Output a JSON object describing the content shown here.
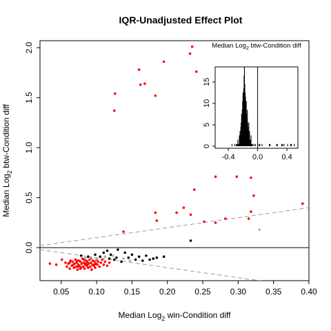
{
  "chart_data": {
    "type": "scatter",
    "title": "IQR-Unadjusted Effect Plot",
    "xlabel_pre": "Median  Log",
    "xlabel_sub": "2",
    "xlabel_post": "  win-Condition diff",
    "ylabel_pre": "Median  Log",
    "ylabel_sub": "2",
    "ylabel_post": "  btw-Condition diff",
    "xlim": [
      0.02,
      0.4
    ],
    "ylim": [
      -0.33,
      2.07
    ],
    "xticks": [
      "0.05",
      "0.10",
      "0.15",
      "0.20",
      "0.25",
      "0.30",
      "0.35",
      "0.40"
    ],
    "yticks": [
      "0.0",
      "0.5",
      "1.0",
      "1.5",
      "2.0"
    ],
    "colors": {
      "significant": "#ff0000",
      "other": "#000000",
      "minor": "#aaaaaa",
      "reference_line": "#000000",
      "dashed_line": "#999999"
    },
    "reference_lines": [
      {
        "type": "horizontal",
        "y": 0,
        "style": "solid"
      },
      {
        "type": "line",
        "intercept": 0,
        "slope": 1,
        "style": "dashed"
      },
      {
        "type": "line",
        "intercept": 0,
        "slope": -1,
        "style": "dashed"
      }
    ],
    "series": [
      {
        "color": "#ff0000",
        "points": [
          [
            0.235,
            2.01
          ],
          [
            0.232,
            1.94
          ],
          [
            0.241,
            1.76
          ],
          [
            0.195,
            1.86
          ],
          [
            0.16,
            1.78
          ],
          [
            0.126,
            1.54
          ],
          [
            0.162,
            1.63
          ],
          [
            0.168,
            1.64
          ],
          [
            0.183,
            1.52
          ],
          [
            0.125,
            1.37
          ],
          [
            0.337,
            1.97
          ],
          [
            0.238,
            0.58
          ],
          [
            0.268,
            0.71
          ],
          [
            0.298,
            0.71
          ],
          [
            0.318,
            0.7
          ],
          [
            0.335,
            0.79
          ],
          [
            0.322,
            0.52
          ],
          [
            0.223,
            0.4
          ],
          [
            0.183,
            0.35
          ],
          [
            0.213,
            0.35
          ],
          [
            0.233,
            0.33
          ],
          [
            0.185,
            0.27
          ],
          [
            0.252,
            0.26
          ],
          [
            0.268,
            0.25
          ],
          [
            0.282,
            0.29
          ],
          [
            0.318,
            0.36
          ],
          [
            0.315,
            0.29
          ],
          [
            0.138,
            0.16
          ],
          [
            0.034,
            -0.16
          ],
          [
            0.043,
            -0.17
          ],
          [
            0.051,
            -0.12
          ],
          [
            0.056,
            -0.15
          ],
          [
            0.058,
            -0.19
          ],
          [
            0.06,
            -0.16
          ],
          [
            0.062,
            -0.21
          ],
          [
            0.063,
            -0.13
          ],
          [
            0.065,
            -0.18
          ],
          [
            0.066,
            -0.14
          ],
          [
            0.068,
            -0.2
          ],
          [
            0.069,
            -0.16
          ],
          [
            0.07,
            -0.12
          ],
          [
            0.071,
            -0.19
          ],
          [
            0.072,
            -0.15
          ],
          [
            0.073,
            -0.22
          ],
          [
            0.074,
            -0.17
          ],
          [
            0.075,
            -0.13
          ],
          [
            0.076,
            -0.18
          ],
          [
            0.077,
            -0.14
          ],
          [
            0.078,
            -0.2
          ],
          [
            0.079,
            -0.16
          ],
          [
            0.08,
            -0.11
          ],
          [
            0.081,
            -0.19
          ],
          [
            0.082,
            -0.15
          ],
          [
            0.083,
            -0.21
          ],
          [
            0.084,
            -0.17
          ],
          [
            0.085,
            -0.13
          ],
          [
            0.086,
            -0.18
          ],
          [
            0.087,
            -0.14
          ],
          [
            0.088,
            -0.2
          ],
          [
            0.089,
            -0.16
          ],
          [
            0.09,
            -0.12
          ],
          [
            0.091,
            -0.19
          ],
          [
            0.092,
            -0.15
          ],
          [
            0.093,
            -0.22
          ],
          [
            0.094,
            -0.17
          ],
          [
            0.095,
            -0.13
          ],
          [
            0.096,
            -0.18
          ],
          [
            0.097,
            -0.14
          ],
          [
            0.098,
            -0.2
          ],
          [
            0.099,
            -0.16
          ],
          [
            0.1,
            -0.12
          ],
          [
            0.101,
            -0.17
          ],
          [
            0.102,
            -0.14
          ],
          [
            0.104,
            -0.19
          ],
          [
            0.106,
            -0.15
          ],
          [
            0.108,
            -0.12
          ],
          [
            0.11,
            -0.17
          ],
          [
            0.112,
            -0.14
          ],
          [
            0.115,
            -0.18
          ],
          [
            0.118,
            -0.15
          ],
          [
            0.067,
            -0.17
          ],
          [
            0.072,
            -0.13
          ],
          [
            0.077,
            -0.21
          ],
          [
            0.082,
            -0.12
          ],
          [
            0.087,
            -0.17
          ],
          [
            0.092,
            -0.11
          ],
          [
            0.097,
            -0.17
          ],
          [
            0.062,
            -0.15
          ],
          [
            0.074,
            -0.19
          ],
          [
            0.085,
            -0.16
          ],
          [
            0.391,
            0.44
          ]
        ]
      },
      {
        "color": "#000000",
        "points": [
          [
            0.233,
            0.07
          ],
          [
            0.13,
            -0.02
          ],
          [
            0.14,
            -0.05
          ],
          [
            0.15,
            -0.07
          ],
          [
            0.16,
            -0.09
          ],
          [
            0.17,
            -0.08
          ],
          [
            0.18,
            -0.11
          ],
          [
            0.185,
            -0.1
          ],
          [
            0.195,
            -0.09
          ],
          [
            0.145,
            -0.1
          ],
          [
            0.155,
            -0.12
          ],
          [
            0.165,
            -0.13
          ],
          [
            0.12,
            -0.07
          ],
          [
            0.125,
            -0.12
          ],
          [
            0.11,
            -0.05
          ],
          [
            0.105,
            -0.09
          ],
          [
            0.098,
            -0.07
          ],
          [
            0.135,
            -0.14
          ],
          [
            0.128,
            -0.1
          ],
          [
            0.118,
            -0.11
          ],
          [
            0.088,
            -0.09
          ],
          [
            0.078,
            -0.08
          ],
          [
            0.115,
            -0.03
          ],
          [
            0.175,
            -0.12
          ]
        ]
      },
      {
        "color": "#aaaaaa",
        "points": [
          [
            0.33,
            0.18
          ],
          [
            0.1,
            -0.11
          ],
          [
            0.112,
            -0.09
          ],
          [
            0.123,
            -0.08
          ],
          [
            0.092,
            -0.12
          ],
          [
            0.138,
            -0.11
          ],
          [
            0.084,
            -0.1
          ],
          [
            0.147,
            -0.13
          ]
        ]
      }
    ],
    "inset": {
      "type": "histogram",
      "title_pre": "Median  Log",
      "title_sub": "2",
      "title_post": "  btw-Condition diff",
      "xlim": [
        -0.58,
        0.55
      ],
      "ylim": [
        0,
        19
      ],
      "xticks": [
        "-0.4",
        "0.0",
        "0.4"
      ],
      "yticks": [
        "0",
        "5",
        "10",
        "15"
      ],
      "vline_x": 0,
      "bins": [
        [
          -0.35,
          1
        ],
        [
          -0.31,
          1
        ],
        [
          -0.29,
          1
        ],
        [
          -0.28,
          1
        ],
        [
          -0.27,
          2
        ],
        [
          -0.26,
          1
        ],
        [
          -0.25,
          3
        ],
        [
          -0.245,
          2
        ],
        [
          -0.24,
          4
        ],
        [
          -0.235,
          3
        ],
        [
          -0.23,
          5
        ],
        [
          -0.225,
          6
        ],
        [
          -0.22,
          8
        ],
        [
          -0.215,
          7
        ],
        [
          -0.21,
          9
        ],
        [
          -0.205,
          11
        ],
        [
          -0.2,
          13
        ],
        [
          -0.195,
          12
        ],
        [
          -0.19,
          14
        ],
        [
          -0.185,
          17
        ],
        [
          -0.18,
          19
        ],
        [
          -0.175,
          15
        ],
        [
          -0.17,
          13
        ],
        [
          -0.165,
          12
        ],
        [
          -0.16,
          10
        ],
        [
          -0.155,
          11
        ],
        [
          -0.15,
          8
        ],
        [
          -0.145,
          7
        ],
        [
          -0.14,
          9
        ],
        [
          -0.135,
          6
        ],
        [
          -0.13,
          5
        ],
        [
          -0.125,
          4
        ],
        [
          -0.12,
          6
        ],
        [
          -0.115,
          3
        ],
        [
          -0.11,
          4
        ],
        [
          -0.1,
          2
        ],
        [
          -0.09,
          3
        ],
        [
          -0.08,
          1
        ],
        [
          -0.07,
          1
        ],
        [
          -0.05,
          1
        ],
        [
          -0.03,
          1
        ],
        [
          0.02,
          1
        ],
        [
          0.03,
          1
        ],
        [
          0.06,
          1
        ],
        [
          0.16,
          1
        ],
        [
          0.17,
          1
        ],
        [
          0.26,
          1
        ],
        [
          0.27,
          1
        ],
        [
          0.33,
          1
        ],
        [
          0.34,
          1
        ],
        [
          0.36,
          1
        ],
        [
          0.41,
          1
        ],
        [
          0.45,
          1
        ],
        [
          0.46,
          1
        ],
        [
          0.5,
          1
        ]
      ]
    }
  }
}
